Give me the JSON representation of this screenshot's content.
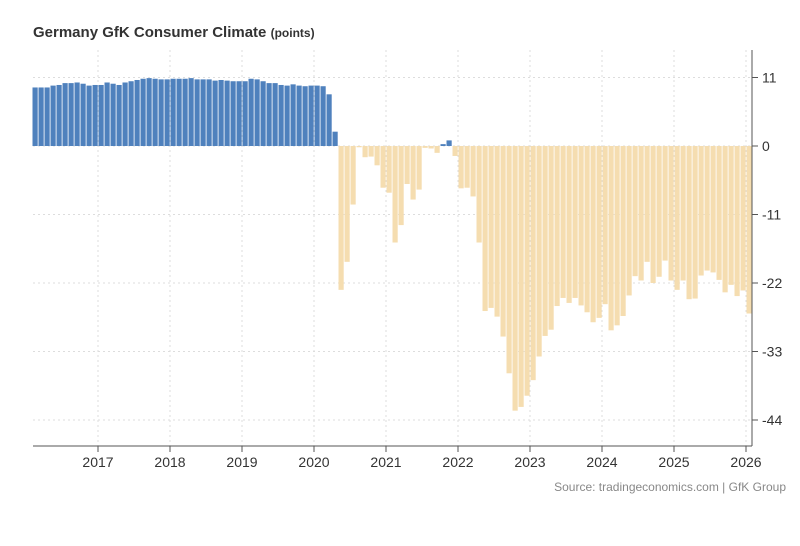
{
  "chart_data": {
    "type": "bar",
    "title": "Germany GfK Consumer Climate",
    "unit": "(points)",
    "source": "Source: tradingeconomics.com | GfK Group",
    "start_month": "2016-02",
    "frequency": "monthly",
    "x_ticks": [
      "2017",
      "2018",
      "2019",
      "2020",
      "2021",
      "2022",
      "2023",
      "2024",
      "2025",
      "2026"
    ],
    "y_ticks": [
      11,
      0,
      -11,
      -22,
      -33,
      -44
    ],
    "ylim": [
      -47,
      15
    ],
    "grid": true,
    "colors": {
      "positive": "#4f81bd",
      "negative": "#f5ddb0"
    },
    "values": [
      9.4,
      9.4,
      9.4,
      9.7,
      9.8,
      10.1,
      10.1,
      10.2,
      10.0,
      9.7,
      9.8,
      9.8,
      10.2,
      10.0,
      9.8,
      10.2,
      10.4,
      10.6,
      10.8,
      10.9,
      10.8,
      10.7,
      10.7,
      10.8,
      10.8,
      10.8,
      10.9,
      10.7,
      10.7,
      10.7,
      10.5,
      10.6,
      10.5,
      10.4,
      10.4,
      10.4,
      10.8,
      10.7,
      10.4,
      10.1,
      10.1,
      9.8,
      9.7,
      9.9,
      9.7,
      9.6,
      9.7,
      9.7,
      9.6,
      8.3,
      2.3,
      -23.1,
      -18.6,
      -9.4,
      -0.2,
      -1.8,
      -1.7,
      -3.1,
      -6.7,
      -7.5,
      -15.5,
      -12.7,
      -6.1,
      -8.6,
      -7.0,
      -0.3,
      -0.4,
      -1.1,
      0.3,
      0.9,
      -1.6,
      -6.8,
      -6.7,
      -8.1,
      -15.5,
      -26.5,
      -26.0,
      -27.4,
      -30.6,
      -36.5,
      -42.5,
      -41.9,
      -40.1,
      -37.6,
      -33.8,
      -30.5,
      -29.5,
      -25.7,
      -24.4,
      -25.2,
      -24.4,
      -25.6,
      -26.7,
      -28.3,
      -27.6,
      -25.4,
      -29.6,
      -28.8,
      -27.3,
      -24.0,
      -20.9,
      -21.6,
      -18.6,
      -22.0,
      -21.0,
      -18.4,
      -21.6,
      -23.1,
      -21.6,
      -24.6,
      -24.5,
      -20.8,
      -20.0,
      -20.3,
      -21.5,
      -23.5,
      -22.3,
      -24.1,
      -23.2,
      -26.9
    ]
  }
}
